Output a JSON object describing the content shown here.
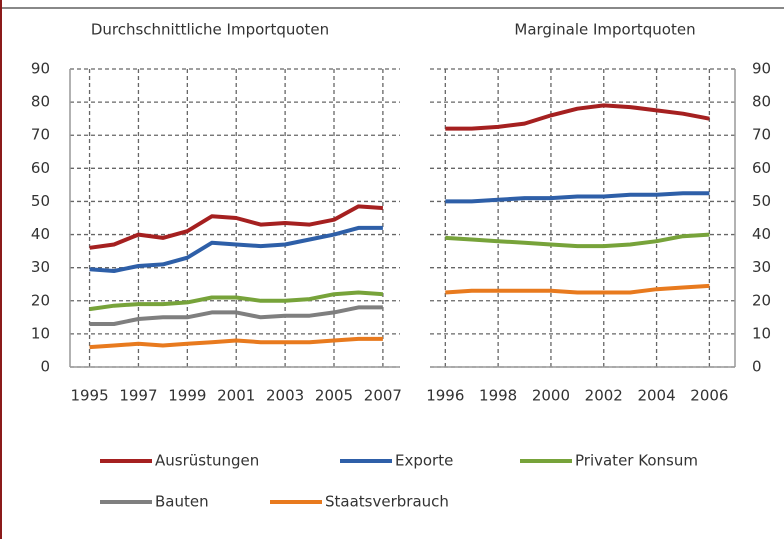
{
  "chart_data": [
    {
      "type": "line",
      "title": "Durchschnittliche Importquoten",
      "x": [
        1995,
        1996,
        1997,
        1998,
        1999,
        2000,
        2001,
        2002,
        2003,
        2004,
        2005,
        2006,
        2007
      ],
      "xlim": [
        1994.2,
        2007.7
      ],
      "xticks": [
        1995,
        1997,
        1999,
        2001,
        2003,
        2005,
        2007
      ],
      "ylim": [
        0,
        90
      ],
      "yticks": [
        0,
        10,
        20,
        30,
        40,
        50,
        60,
        70,
        80,
        90
      ],
      "grid": true,
      "series": [
        {
          "name": "Ausrüstungen",
          "color": "#a52020",
          "values": [
            36,
            37,
            40,
            39,
            41,
            45.5,
            45,
            43,
            43.5,
            43,
            44.5,
            48.5,
            48
          ]
        },
        {
          "name": "Exporte",
          "color": "#2e5fa8",
          "values": [
            29.5,
            29,
            30.5,
            31,
            33,
            37.5,
            37,
            36.5,
            37,
            38.5,
            40,
            42,
            42
          ]
        },
        {
          "name": "Privater Konsum",
          "color": "#77a33a",
          "values": [
            17.5,
            18.5,
            19,
            19,
            19.5,
            21,
            21,
            20,
            20,
            20.5,
            22,
            22.5,
            22
          ]
        },
        {
          "name": "Bauten",
          "color": "#7f7f7f",
          "values": [
            13,
            13,
            14.5,
            15,
            15,
            16.5,
            16.5,
            15,
            15.5,
            15.5,
            16.5,
            18,
            18
          ]
        },
        {
          "name": "Staatsverbrauch",
          "color": "#e87a1e",
          "values": [
            6,
            6.5,
            7,
            6.5,
            7,
            7.5,
            8,
            7.5,
            7.5,
            7.5,
            8,
            8.5,
            8.5
          ]
        }
      ]
    },
    {
      "type": "line",
      "title": "Marginale Importquoten",
      "x": [
        1996,
        1997,
        1998,
        1999,
        2000,
        2001,
        2002,
        2003,
        2004,
        2005,
        2006
      ],
      "xlim": [
        1995.42,
        2006.97
      ],
      "xticks": [
        1996,
        1998,
        2000,
        2002,
        2004,
        2006
      ],
      "ylim": [
        0,
        90
      ],
      "yticks": [
        0,
        10,
        20,
        30,
        40,
        50,
        60,
        70,
        80,
        90
      ],
      "grid": true,
      "series": [
        {
          "color": "#a52020",
          "values": [
            72,
            72,
            72.5,
            73.5,
            76,
            78,
            79,
            78.5,
            77.5,
            76.5,
            75
          ]
        },
        {
          "color": "#2e5fa8",
          "values": [
            50,
            50,
            50.5,
            51,
            51,
            51.5,
            51.5,
            52,
            52,
            52.5,
            52.5
          ]
        },
        {
          "color": "#77a33a",
          "values": [
            39,
            38.5,
            38,
            37.5,
            37,
            36.5,
            36.5,
            37,
            38,
            39.5,
            40
          ]
        },
        {
          "color": "#e87a1e",
          "values": [
            22.5,
            23,
            23,
            23,
            23,
            22.5,
            22.5,
            22.5,
            23.5,
            24,
            24.5
          ]
        }
      ]
    }
  ]
}
